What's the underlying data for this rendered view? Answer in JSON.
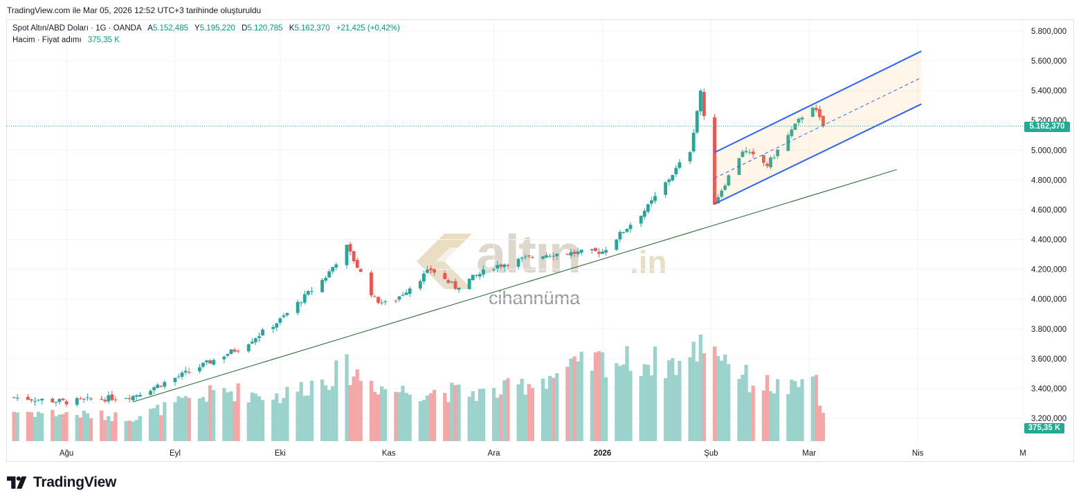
{
  "header": {
    "caption": "TradingView.com ile Mar 05, 2026 12:52 UTC+3 tarihinde oluşturuldu"
  },
  "legend": {
    "symbol": "Spot Altın/ABD Doları · 1G · OANDA",
    "open_label": "A",
    "open": "5.152,485",
    "high_label": "Y",
    "high": "5.195,220",
    "low_label": "D",
    "low": "5.120,785",
    "close_label": "K",
    "close": "5.162,370",
    "change": "+21,425 (+0,42%)",
    "volume_label": "Hacim · Fiyat adımı",
    "volume_value": "375,35 K"
  },
  "last_price_badge": "5.162,370",
  "volume_badge": "375,35 K",
  "watermark": {
    "brand": "altın",
    "suffix": ".in",
    "subtitle": "cihannüma"
  },
  "footer": {
    "brand": "TradingView"
  },
  "colors": {
    "up": "#26a69a",
    "down": "#ef5350",
    "vol_up": "#9bd3cc",
    "vol_down": "#f3a7a6",
    "channel": "#2962ff",
    "trend": "#1b5e20",
    "last_price": "#22ab94"
  },
  "chart_data": {
    "type": "candlestick",
    "title": "Spot Altın/ABD Doları · 1G · OANDA",
    "y_ticks": [
      "5.800,000",
      "5.600,000",
      "5.400,000",
      "5.200,000",
      "5.000,000",
      "4.800,000",
      "4.600,000",
      "4.400,000",
      "4.200,000",
      "4.000,000",
      "3.800,000",
      "3.600,000",
      "3.400,000",
      "3.200,000"
    ],
    "y_tick_values": [
      5800,
      5600,
      5400,
      5200,
      5000,
      4800,
      4600,
      4400,
      4200,
      4000,
      3800,
      3600,
      3400,
      3200
    ],
    "ylim": [
      3180,
      5820
    ],
    "x_ticks": [
      {
        "label": "Ağu",
        "date": "2025-08-01",
        "bold": false
      },
      {
        "label": "Eyl",
        "date": "2025-09-01",
        "bold": false
      },
      {
        "label": "Eki",
        "date": "2025-10-01",
        "bold": false
      },
      {
        "label": "Kas",
        "date": "2025-11-01",
        "bold": false
      },
      {
        "label": "Ara",
        "date": "2025-12-01",
        "bold": false
      },
      {
        "label": "2026",
        "date": "2026-01-01",
        "bold": true
      },
      {
        "label": "Şub",
        "date": "2026-02-01",
        "bold": false
      },
      {
        "label": "Mar",
        "date": "2026-03-01",
        "bold": false
      },
      {
        "label": "Nis",
        "date": "2026-04-01",
        "bold": false
      },
      {
        "label": "M",
        "date": "2026-05-01",
        "bold": false
      }
    ],
    "anchors": [
      "2025-07-17",
      "2025-08-01",
      "2025-08-20",
      "2025-09-02",
      "2025-09-20",
      "2025-10-01",
      "2025-10-14",
      "2025-10-20",
      "2025-10-28",
      "2025-11-01",
      "2025-11-13",
      "2025-11-20",
      "2025-12-01",
      "2025-12-15",
      "2026-01-01",
      "2026-01-14",
      "2026-01-26",
      "2026-01-29",
      "2026-02-02",
      "2026-02-10",
      "2026-02-17",
      "2026-02-27",
      "2026-03-02",
      "2026-03-05"
    ],
    "anchor_values": [
      3340,
      3310,
      3350,
      3480,
      3680,
      3860,
      4150,
      4350,
      4000,
      3960,
      4200,
      4080,
      4220,
      4300,
      4320,
      4620,
      5000,
      5400,
      4650,
      5000,
      4900,
      5230,
      5300,
      5162
    ],
    "last_close": 5162.37,
    "volume": {
      "axis_label": "Hacim",
      "last_value": "375,35 K",
      "anchors": [
        "2025-07-17",
        "2025-08-20",
        "2025-09-15",
        "2025-10-01",
        "2025-10-20",
        "2025-11-01",
        "2025-12-01",
        "2026-01-01",
        "2026-01-25",
        "2026-01-30",
        "2026-02-02",
        "2026-02-12",
        "2026-02-25",
        "2026-03-02",
        "2026-03-05"
      ],
      "anchor_values": [
        100,
        80,
        170,
        150,
        240,
        170,
        160,
        270,
        260,
        340,
        320,
        200,
        170,
        240,
        80
      ],
      "max": 340
    },
    "drawings": {
      "trendline": [
        {
          "date": "2025-08-20",
          "price": 3310
        },
        {
          "date": "2026-03-26",
          "price": 4870
        }
      ],
      "channel_upper": [
        {
          "date": "2026-02-02",
          "price": 4985
        },
        {
          "date": "2026-04-02",
          "price": 5665
        }
      ],
      "channel_lower": [
        {
          "date": "2026-02-02",
          "price": 4640
        },
        {
          "date": "2026-04-02",
          "price": 5310
        }
      ]
    }
  }
}
